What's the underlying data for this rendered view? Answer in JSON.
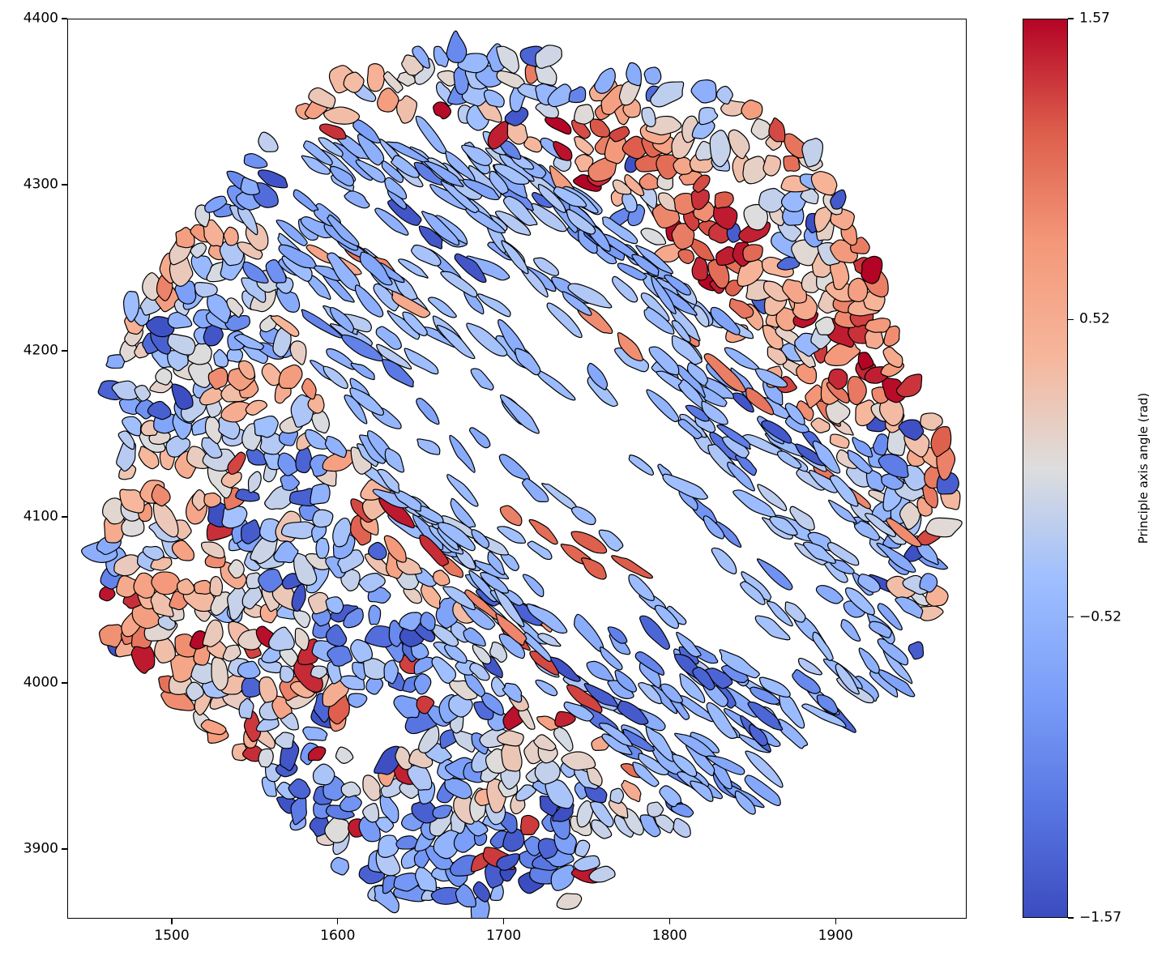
{
  "chart_data": {
    "type": "heatmap",
    "subtype": "segmented-cell-polygon-map",
    "title": "",
    "xlabel": "",
    "ylabel": "",
    "x_ticks": [
      "1500",
      "1600",
      "1700",
      "1800",
      "1900"
    ],
    "x_tick_values": [
      1500,
      1600,
      1700,
      1800,
      1900
    ],
    "y_ticks": [
      "3900",
      "4000",
      "4100",
      "4200",
      "4300",
      "4400"
    ],
    "y_tick_values": [
      3900,
      4000,
      4100,
      4200,
      4300,
      4400
    ],
    "xlim": [
      1437,
      1979
    ],
    "ylim": [
      3858,
      4400
    ],
    "grid": false,
    "legend": "colorbar-right",
    "colorbar": {
      "label": "Principle axis angle (rad)",
      "tick_labels": [
        "1.57",
        "0.52",
        "−0.52",
        "−1.57"
      ],
      "tick_values": [
        1.57,
        0.52,
        -0.52,
        -1.57
      ],
      "vmin": -1.57,
      "vmax": 1.57,
      "colormap": "coolwarm",
      "colormap_stops": [
        {
          "t": 0.0,
          "color": "#3b4cc0"
        },
        {
          "t": 0.125,
          "color": "#5977e3"
        },
        {
          "t": 0.25,
          "color": "#7b9ff9"
        },
        {
          "t": 0.375,
          "color": "#9ebeff"
        },
        {
          "t": 0.5,
          "color": "#dddddd"
        },
        {
          "t": 0.625,
          "color": "#f6b69b"
        },
        {
          "t": 0.75,
          "color": "#f4987a"
        },
        {
          "t": 0.875,
          "color": "#dd5e4c"
        },
        {
          "t": 1.0,
          "color": "#b40426"
        }
      ]
    },
    "cell_field": {
      "description": "Roughly circular tissue cross-section of ~1500 segmented cells, each polygon coloured by its principal-axis angle on the coolwarm scale. Dense multicoloured (red/blue/grey/salmon) rim of rounded cells; a sparse diagonal band of elongated light-blue cells runs through the pith from upper-left of centre to the lower-right edge; upper-right inner region is red-dominated.",
      "disc_center": [
        1709,
        4127
      ],
      "disc_radius": 256,
      "edge_irregularity": 0.13,
      "sparse_band": {
        "center": [
          1762,
          4122
        ],
        "angle_deg": -51,
        "semi_major": 200,
        "semi_minor": 85
      },
      "band_cell_angle_deg": -40,
      "red_bias_sector_deg": [
        10,
        80
      ],
      "blue_bias_sector_deg": [
        -135,
        -45
      ],
      "cell_spacing": 10.5,
      "outline_color": "#000000",
      "outline_width": 1.2,
      "seed": 20240613
    }
  }
}
